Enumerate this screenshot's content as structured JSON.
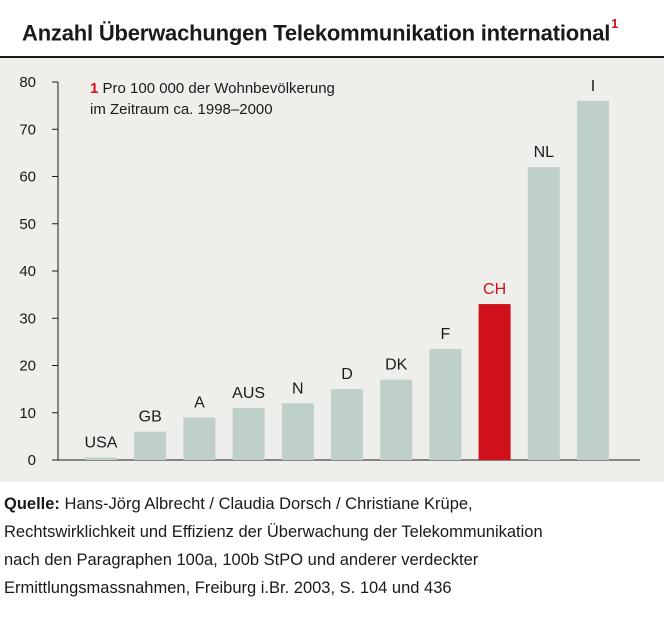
{
  "title": "Anzahl Überwachungen Telekommunikation international",
  "title_footnote": "1",
  "note": {
    "number": "1",
    "line1": "Pro 100 000 der Wohnbevölkerung",
    "line2": "im Zeitraum ca. 1998–2000"
  },
  "source": {
    "label": "Quelle:",
    "line1": "Hans-Jörg Albrecht / Claudia Dorsch / Christiane Krüpe,",
    "line2": "Rechtswirklichkeit und Effizienz der Überwachung der Telekommunikation",
    "line3": "nach den Paragraphen 100a, 100b StPO und anderer verdeckter",
    "line4": "Ermittlungsmassnahmen, Freiburg i.Br. 2003, S. 104 und 436"
  },
  "colors": {
    "bar": "#bfd0c9",
    "highlight": "#d0101a",
    "background_panel": "#eeeeea"
  },
  "chart_data": {
    "type": "bar",
    "categories": [
      "USA",
      "GB",
      "A",
      "AUS",
      "N",
      "D",
      "DK",
      "F",
      "CH",
      "NL",
      "I"
    ],
    "values": [
      0.5,
      6,
      9,
      11,
      12,
      15,
      17,
      23.5,
      33,
      62,
      76
    ],
    "highlight_category": "CH",
    "ylim": [
      0,
      80
    ],
    "yticks": [
      0,
      10,
      20,
      30,
      40,
      50,
      60,
      70,
      80
    ],
    "grid": false,
    "xlabel": "",
    "ylabel": ""
  }
}
